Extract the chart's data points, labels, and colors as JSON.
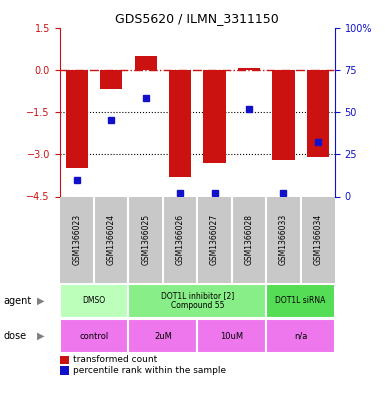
{
  "title": "GDS5620 / ILMN_3311150",
  "samples": [
    "GSM1366023",
    "GSM1366024",
    "GSM1366025",
    "GSM1366026",
    "GSM1366027",
    "GSM1366028",
    "GSM1366033",
    "GSM1366034"
  ],
  "bar_values": [
    -3.5,
    -0.7,
    0.5,
    -3.8,
    -3.3,
    0.05,
    -3.2,
    -3.1
  ],
  "percentile_values": [
    10,
    45,
    58,
    2,
    2,
    52,
    2,
    32
  ],
  "ylim_left": [
    -4.5,
    1.5
  ],
  "ylim_right": [
    0,
    100
  ],
  "yticks_left": [
    1.5,
    0,
    -1.5,
    -3,
    -4.5
  ],
  "yticks_right": [
    100,
    75,
    50,
    25,
    0
  ],
  "hline_dashed": 0,
  "hlines_dotted": [
    -1.5,
    -3
  ],
  "bar_color": "#cc1111",
  "dot_color": "#1111cc",
  "bar_width": 0.65,
  "agent_labels": [
    {
      "text": "DMSO",
      "cols": [
        0,
        1
      ],
      "color": "#bbffbb"
    },
    {
      "text": "DOT1L inhibitor [2]\nCompound 55",
      "cols": [
        2,
        3,
        4,
        5
      ],
      "color": "#88ee88"
    },
    {
      "text": "DOT1L siRNA",
      "cols": [
        6,
        7
      ],
      "color": "#55dd55"
    }
  ],
  "dose_labels": [
    {
      "text": "control",
      "cols": [
        0,
        1
      ],
      "color": "#ee77ee"
    },
    {
      "text": "2uM",
      "cols": [
        2,
        3
      ],
      "color": "#ee77ee"
    },
    {
      "text": "10uM",
      "cols": [
        4,
        5
      ],
      "color": "#ee77ee"
    },
    {
      "text": "n/a",
      "cols": [
        6,
        7
      ],
      "color": "#ee77ee"
    }
  ],
  "legend_bar_label": "transformed count",
  "legend_dot_label": "percentile rank within the sample",
  "row_label_agent": "agent",
  "row_label_dose": "dose",
  "background_color": "#ffffff",
  "plot_bg_color": "#ffffff",
  "tick_color_left": "#cc1111",
  "tick_color_right": "#1111cc",
  "sample_bg_color": "#c8c8c8",
  "sample_divider_color": "#ffffff"
}
